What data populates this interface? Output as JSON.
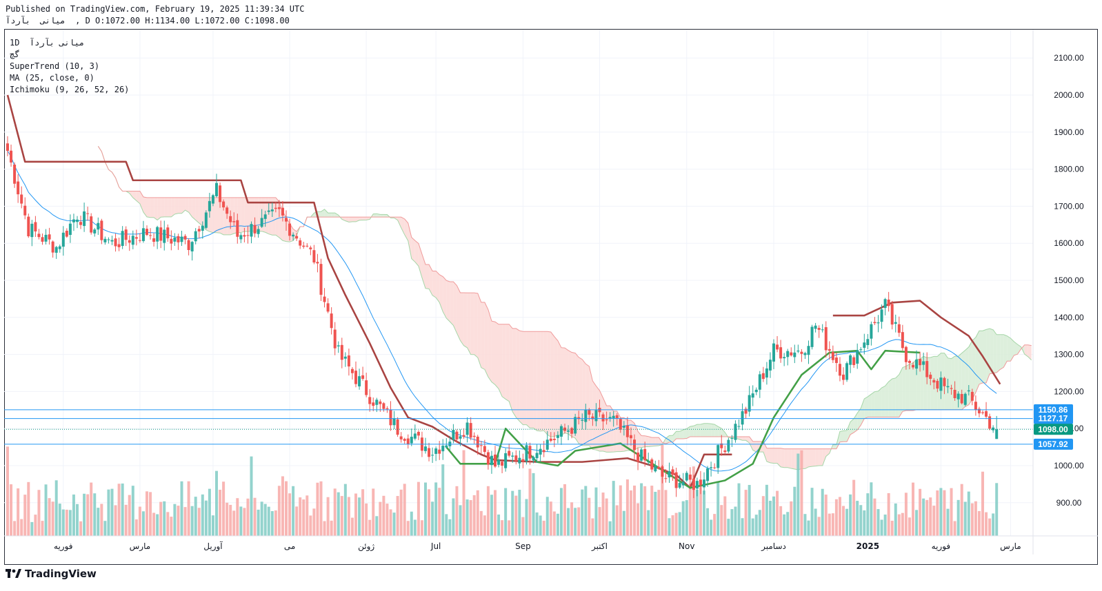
{
  "header": {
    "published": "Published on TradingView.com, February 19, 2025 11:39:34 UTC",
    "ohlc": "میانی  بآردآ  , D O:1072.00 H:1134.00 L:1072.00 C:1098.00"
  },
  "legend": {
    "symbol": "1D  میانی بآردآ",
    "exchange": "گچ",
    "supertrend": "SuperTrend (10, 3)",
    "ma": "MA (25, close, 0)",
    "ichimoku": "Ichimoku (9, 26, 52, 26)"
  },
  "footer": {
    "brand": "TradingView"
  },
  "colors": {
    "up": "#26a69a",
    "down": "#ef5350",
    "ma": "#2196f3",
    "st_down": "#a94442",
    "st_up": "#43a047",
    "cloud_bull": "#d7ecd6",
    "cloud_bear": "#fbd9d7",
    "hline": "#2196f3",
    "last": "#089981"
  },
  "chart_data": {
    "type": "candlestick",
    "y_ticks": [
      900,
      1000,
      1100,
      1200,
      1300,
      1400,
      1500,
      1600,
      1700,
      1800,
      1900,
      2000,
      2100
    ],
    "y_tick_labels": [
      "900.00",
      "1000.00",
      "1100.00",
      "1200.00",
      "1300.00",
      "1400.00",
      "1500.00",
      "1600.00",
      "1700.00",
      "1800.00",
      "1900.00",
      "2000.00",
      "2100.00"
    ],
    "x_labels": [
      {
        "bar": 16,
        "text": "فوریه"
      },
      {
        "bar": 38,
        "text": "مارس"
      },
      {
        "bar": 59,
        "text": "آوریل"
      },
      {
        "bar": 81,
        "text": "می"
      },
      {
        "bar": 103,
        "text": "ژوئن"
      },
      {
        "bar": 123,
        "text": "Jul"
      },
      {
        "bar": 148,
        "text": "Sep"
      },
      {
        "bar": 170,
        "text": "اکتبر"
      },
      {
        "bar": 195,
        "text": "Nov"
      },
      {
        "bar": 220,
        "text": "دسامبر"
      },
      {
        "bar": 247,
        "text": "2025"
      },
      {
        "bar": 268,
        "text": "فوریه"
      },
      {
        "bar": 288,
        "text": "مارس"
      }
    ],
    "price_lines": [
      {
        "value": 1150.86,
        "label": "1150.86"
      },
      {
        "value": 1127.17,
        "label": "1127.17"
      },
      {
        "value": 1057.92,
        "label": "1057.92"
      }
    ],
    "last_price": {
      "value": 1098.0,
      "label": "1098.00"
    },
    "last_ohlc": {
      "open": 1072.0,
      "high": 1134.0,
      "low": 1072.0,
      "close": 1098.0
    },
    "waypoints": [
      [
        0,
        1850
      ],
      [
        6,
        1640
      ],
      [
        14,
        1590
      ],
      [
        20,
        1680
      ],
      [
        30,
        1600
      ],
      [
        40,
        1630
      ],
      [
        52,
        1600
      ],
      [
        60,
        1740
      ],
      [
        66,
        1620
      ],
      [
        78,
        1680
      ],
      [
        88,
        1560
      ],
      [
        95,
        1300
      ],
      [
        104,
        1190
      ],
      [
        112,
        1100
      ],
      [
        122,
        1040
      ],
      [
        132,
        1110
      ],
      [
        140,
        1000
      ],
      [
        150,
        1040
      ],
      [
        158,
        1080
      ],
      [
        166,
        1130
      ],
      [
        174,
        1120
      ],
      [
        182,
        1020
      ],
      [
        188,
        970
      ],
      [
        198,
        950
      ],
      [
        206,
        1060
      ],
      [
        212,
        1150
      ],
      [
        220,
        1310
      ],
      [
        228,
        1310
      ],
      [
        232,
        1380
      ],
      [
        240,
        1250
      ],
      [
        246,
        1340
      ],
      [
        252,
        1430
      ],
      [
        258,
        1300
      ],
      [
        264,
        1250
      ],
      [
        270,
        1200
      ],
      [
        276,
        1180
      ],
      [
        284,
        1098
      ]
    ],
    "supertrend": {
      "down": [
        [
          0,
          2000
        ],
        [
          5,
          1820
        ],
        [
          34,
          1820
        ],
        [
          36,
          1770
        ],
        [
          67,
          1770
        ],
        [
          69,
          1710
        ],
        [
          88,
          1710
        ],
        [
          92,
          1560
        ],
        [
          97,
          1460
        ],
        [
          104,
          1330
        ],
        [
          110,
          1210
        ],
        [
          115,
          1130
        ],
        [
          122,
          1105
        ],
        [
          128,
          1070
        ],
        [
          136,
          1030
        ],
        [
          140,
          1015
        ],
        [
          152,
          1010
        ],
        [
          165,
          1010
        ],
        [
          178,
          1020
        ],
        [
          185,
          1000
        ],
        [
          192,
          975
        ],
        [
          196,
          940
        ],
        [
          200,
          1030
        ],
        [
          208,
          1030
        ]
      ],
      "up": [
        [
          126,
          1050
        ],
        [
          130,
          1005
        ],
        [
          140,
          1005
        ],
        [
          143,
          1100
        ],
        [
          152,
          1010
        ],
        [
          158,
          1000
        ],
        [
          163,
          1040
        ],
        [
          176,
          1060
        ],
        [
          186,
          1000
        ],
        [
          196,
          940
        ],
        [
          206,
          960
        ],
        [
          214,
          1005
        ],
        [
          220,
          1130
        ],
        [
          228,
          1245
        ],
        [
          236,
          1305
        ],
        [
          244,
          1310
        ],
        [
          248,
          1260
        ],
        [
          252,
          1310
        ],
        [
          262,
          1305
        ]
      ],
      "down2": [
        [
          237,
          1405
        ],
        [
          246,
          1405
        ],
        [
          254,
          1440
        ],
        [
          262,
          1445
        ],
        [
          268,
          1400
        ],
        [
          276,
          1350
        ],
        [
          280,
          1295
        ],
        [
          285,
          1220
        ]
      ]
    },
    "ma_period": 25,
    "ichimoku": [
      9,
      26,
      52,
      26
    ]
  }
}
